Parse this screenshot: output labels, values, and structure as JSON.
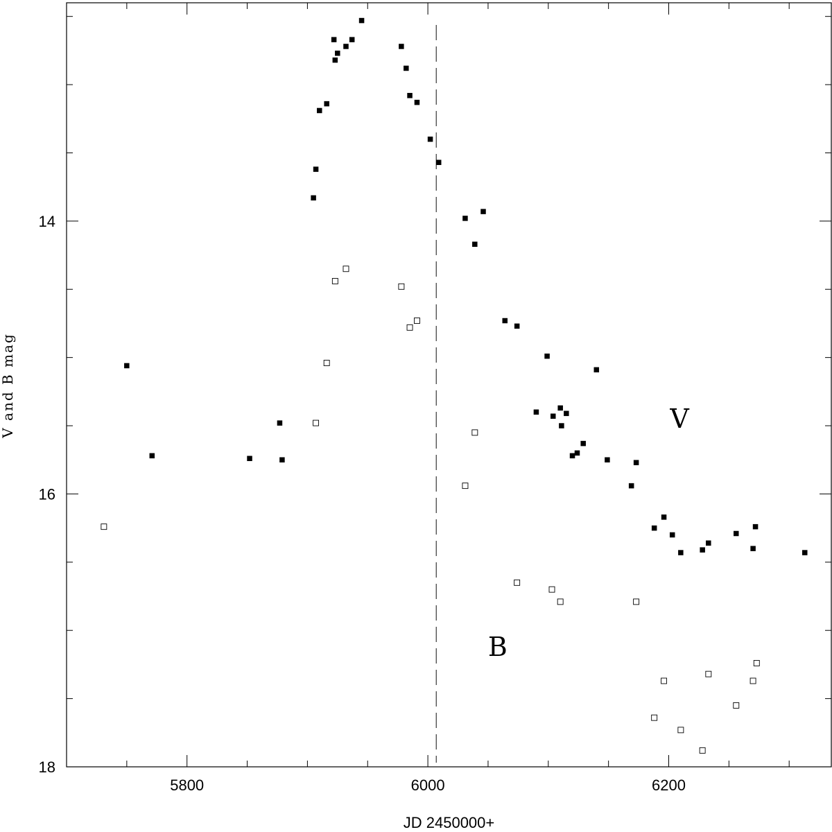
{
  "chart_data": {
    "type": "scatter",
    "title": "",
    "xlabel": "JD 2450000+",
    "ylabel": "V and B mag",
    "xlim": [
      5700,
      6335
    ],
    "ylim": [
      18,
      12.4
    ],
    "y_inverted": true,
    "x_ticks": [
      5800,
      6000,
      6200
    ],
    "x_minor_ticks": [
      5750,
      5850,
      5900,
      5950,
      6050,
      6100,
      6150,
      6250,
      6300
    ],
    "y_ticks": [
      14,
      16,
      18
    ],
    "y_minor_ticks": [
      12.5,
      13,
      13.5,
      14.5,
      15,
      15.5,
      16.5,
      17,
      17.5
    ],
    "grid": false,
    "vertical_marker": {
      "x": 6007,
      "style": "dashed"
    },
    "labels": [
      {
        "text": "V",
        "x": 6209,
        "y": 15.45
      },
      {
        "text": "B",
        "x": 6058,
        "y": 17.12
      }
    ],
    "series": [
      {
        "name": "V",
        "marker": "filled-square",
        "points": [
          [
            5750,
            15.06
          ],
          [
            5771,
            15.72
          ],
          [
            5852,
            15.74
          ],
          [
            5877,
            15.48
          ],
          [
            5879,
            15.75
          ],
          [
            5905,
            13.83
          ],
          [
            5907,
            13.62
          ],
          [
            5910,
            13.19
          ],
          [
            5916,
            13.14
          ],
          [
            5922,
            12.67
          ],
          [
            5923,
            12.82
          ],
          [
            5925,
            12.77
          ],
          [
            5932,
            12.72
          ],
          [
            5937,
            12.67
          ],
          [
            5945,
            12.53
          ],
          [
            5978,
            12.72
          ],
          [
            5982,
            12.88
          ],
          [
            5985,
            13.08
          ],
          [
            5991,
            13.13
          ],
          [
            6002,
            13.4
          ],
          [
            6009,
            13.57
          ],
          [
            6031,
            13.98
          ],
          [
            6039,
            14.17
          ],
          [
            6046,
            13.93
          ],
          [
            6064,
            14.73
          ],
          [
            6074,
            14.77
          ],
          [
            6090,
            15.4
          ],
          [
            6099,
            14.99
          ],
          [
            6104,
            15.43
          ],
          [
            6110,
            15.37
          ],
          [
            6111,
            15.5
          ],
          [
            6115,
            15.41
          ],
          [
            6120,
            15.72
          ],
          [
            6124,
            15.7
          ],
          [
            6129,
            15.63
          ],
          [
            6140,
            15.09
          ],
          [
            6149,
            15.75
          ],
          [
            6169,
            15.94
          ],
          [
            6173,
            15.77
          ],
          [
            6188,
            16.25
          ],
          [
            6196,
            16.17
          ],
          [
            6203,
            16.3
          ],
          [
            6210,
            16.43
          ],
          [
            6228,
            16.41
          ],
          [
            6233,
            16.36
          ],
          [
            6256,
            16.29
          ],
          [
            6270,
            16.4
          ],
          [
            6272,
            16.24
          ],
          [
            6313,
            16.43
          ]
        ]
      },
      {
        "name": "B",
        "marker": "open-square",
        "points": [
          [
            5731,
            16.24
          ],
          [
            5907,
            15.48
          ],
          [
            5916,
            15.04
          ],
          [
            5923,
            14.44
          ],
          [
            5932,
            14.35
          ],
          [
            5978,
            14.48
          ],
          [
            5985,
            14.78
          ],
          [
            5991,
            14.73
          ],
          [
            6031,
            15.94
          ],
          [
            6039,
            15.55
          ],
          [
            6074,
            16.65
          ],
          [
            6103,
            16.7
          ],
          [
            6110,
            16.79
          ],
          [
            6173,
            16.79
          ],
          [
            6188,
            17.64
          ],
          [
            6196,
            17.37
          ],
          [
            6210,
            17.73
          ],
          [
            6228,
            17.88
          ],
          [
            6233,
            17.32
          ],
          [
            6256,
            17.55
          ],
          [
            6270,
            17.37
          ],
          [
            6273,
            17.24
          ]
        ]
      }
    ]
  }
}
